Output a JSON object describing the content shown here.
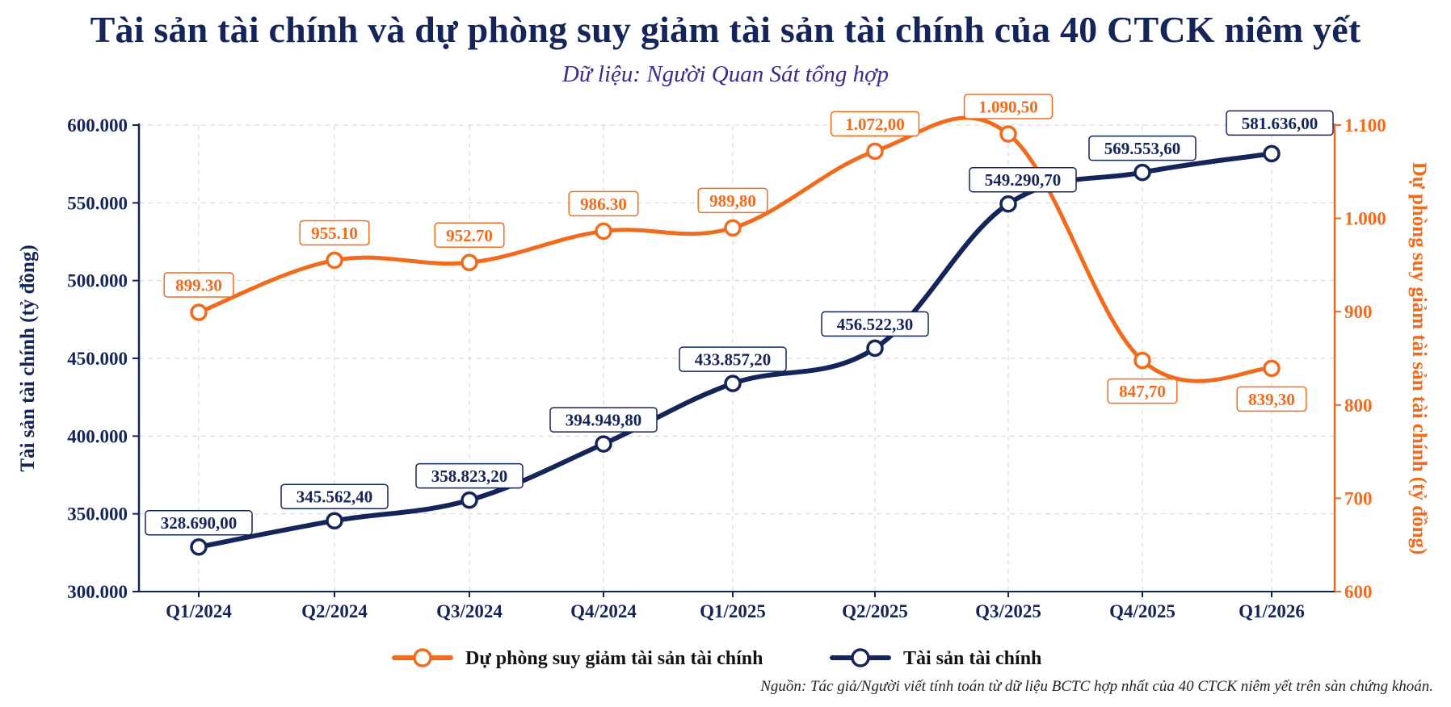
{
  "title": "Tài sản tài chính và dự phòng suy giảm tài sản tài chính của 40 CTCK niêm yết",
  "subtitle": "Dữ liệu: Người Quan Sát tổng hợp",
  "source": "Nguồn: Tác giả/Người viết tính toán từ dữ liệu BCTC hợp nhất của 40 CTCK niêm yết trên sàn chứng khoán.",
  "colors": {
    "navy": "#152559",
    "orange": "#f26b1d",
    "grid": "#d5d5d5"
  },
  "chart_data": {
    "type": "line",
    "categories": [
      "Q1/2024",
      "Q2/2024",
      "Q3/2024",
      "Q4/2024",
      "Q1/2025",
      "Q2/2025",
      "Q3/2025",
      "Q4/2025",
      "Q1/2026"
    ],
    "y_left": {
      "label": "Tài sản tài chính (tỷ đồng)",
      "range": [
        300000,
        600000
      ],
      "ticks": [
        300000,
        350000,
        400000,
        450000,
        500000,
        550000,
        600000
      ],
      "tick_labels": [
        "300.000",
        "350.000",
        "400.000",
        "450.000",
        "500.000",
        "550.000",
        "600.000"
      ]
    },
    "y_right": {
      "label": "Dự phòng suy giảm tài sản tài chính (tỷ đồng)",
      "range": [
        600,
        1100
      ],
      "ticks": [
        600,
        700,
        800,
        900,
        1000,
        1100
      ],
      "tick_labels": [
        "600",
        "700",
        "800",
        "900",
        "1.000",
        "1.100"
      ]
    },
    "grid": true,
    "legend_placement": "bottom-center",
    "series": [
      {
        "name": "Dự phòng suy giảm tài sản tài chính",
        "axis": "right",
        "color": "#f26b1d",
        "values": [
          899.3,
          955.1,
          952.7,
          986.3,
          989.8,
          1072.0,
          1090.5,
          847.7,
          839.3
        ],
        "labels": [
          "899.30",
          "955.10",
          "952.70",
          "986.30",
          "989,80",
          "1.072,00",
          "1.090,50",
          "847,70",
          "839,30"
        ]
      },
      {
        "name": "Tài sản tài chính",
        "axis": "left",
        "color": "#152559",
        "values": [
          328690.0,
          345562.4,
          358823.2,
          394949.8,
          433857.2,
          456522.3,
          549290.7,
          569553.6,
          581636.0
        ],
        "labels": [
          "328.690,00",
          "345.562,40",
          "358.823,20",
          "394.949,80",
          "433.857,20",
          "456.522,30",
          "549.290,70",
          "569.553,60",
          "581.636,00"
        ]
      }
    ]
  }
}
